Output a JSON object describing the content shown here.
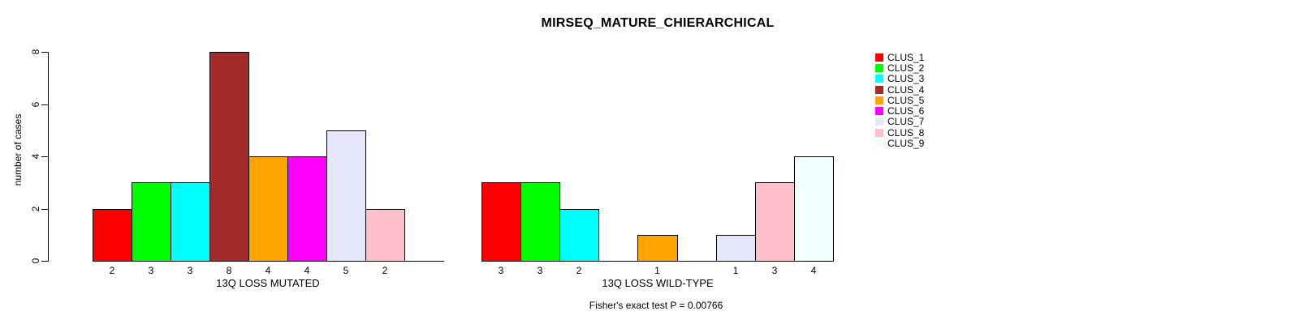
{
  "title": "MIRSEQ_MATURE_CHIERARCHICAL",
  "ylabel": "number of cases",
  "footer": "Fisher's exact test P = 0.00766",
  "palette": {
    "axis_color": "#000000",
    "background": "#FFFFFF"
  },
  "legend": {
    "position": "right",
    "items": [
      {
        "label": "CLUS_1",
        "color": "#FF0000"
      },
      {
        "label": "CLUS_2",
        "color": "#00FF00"
      },
      {
        "label": "CLUS_3",
        "color": "#00FFFF"
      },
      {
        "label": "CLUS_4",
        "color": "#A52A2A"
      },
      {
        "label": "CLUS_5",
        "color": "#FFA500"
      },
      {
        "label": "CLUS_6",
        "color": "#FF00FF"
      },
      {
        "label": "CLUS_7",
        "color": "#E6E6FA"
      },
      {
        "label": "CLUS_8",
        "color": "#FFC0CB"
      },
      {
        "label": "CLUS_9",
        "color": "#F0FFFF"
      }
    ]
  },
  "chart_data": [
    {
      "type": "bar",
      "xlabel": "13Q LOSS MUTATED",
      "ylabel": "number of cases",
      "categories": [
        "CLUS_1",
        "CLUS_2",
        "CLUS_3",
        "CLUS_4",
        "CLUS_5",
        "CLUS_6",
        "CLUS_7",
        "CLUS_8",
        "CLUS_9"
      ],
      "values": [
        2,
        3,
        3,
        8,
        4,
        4,
        5,
        2,
        0
      ],
      "bar_count_labels": [
        "2",
        "3",
        "3",
        "8",
        "4",
        "4",
        "5",
        "2",
        ""
      ],
      "colors": [
        "#FF0000",
        "#00FF00",
        "#00FFFF",
        "#A52A2A",
        "#FFA500",
        "#FF00FF",
        "#E6E6FA",
        "#FFC0CB",
        "#F0FFFF"
      ],
      "ylim": [
        0,
        8
      ],
      "yticks": [
        0,
        2,
        4,
        6,
        8
      ],
      "grid": false,
      "y_axis_shown": true
    },
    {
      "type": "bar",
      "xlabel": "13Q LOSS WILD-TYPE",
      "ylabel": "number of cases",
      "categories": [
        "CLUS_1",
        "CLUS_2",
        "CLUS_3",
        "CLUS_4",
        "CLUS_5",
        "CLUS_6",
        "CLUS_7",
        "CLUS_8",
        "CLUS_9"
      ],
      "values": [
        3,
        3,
        2,
        0,
        1,
        0,
        1,
        3,
        4
      ],
      "bar_count_labels": [
        "3",
        "3",
        "2",
        "",
        "1",
        "",
        "1",
        "3",
        "4"
      ],
      "colors": [
        "#FF0000",
        "#00FF00",
        "#00FFFF",
        "#A52A2A",
        "#FFA500",
        "#FF00FF",
        "#E6E6FA",
        "#FFC0CB",
        "#F0FFFF"
      ],
      "ylim": [
        0,
        8
      ],
      "yticks": [
        0,
        2,
        4,
        6,
        8
      ],
      "grid": false,
      "y_axis_shown": false
    }
  ]
}
